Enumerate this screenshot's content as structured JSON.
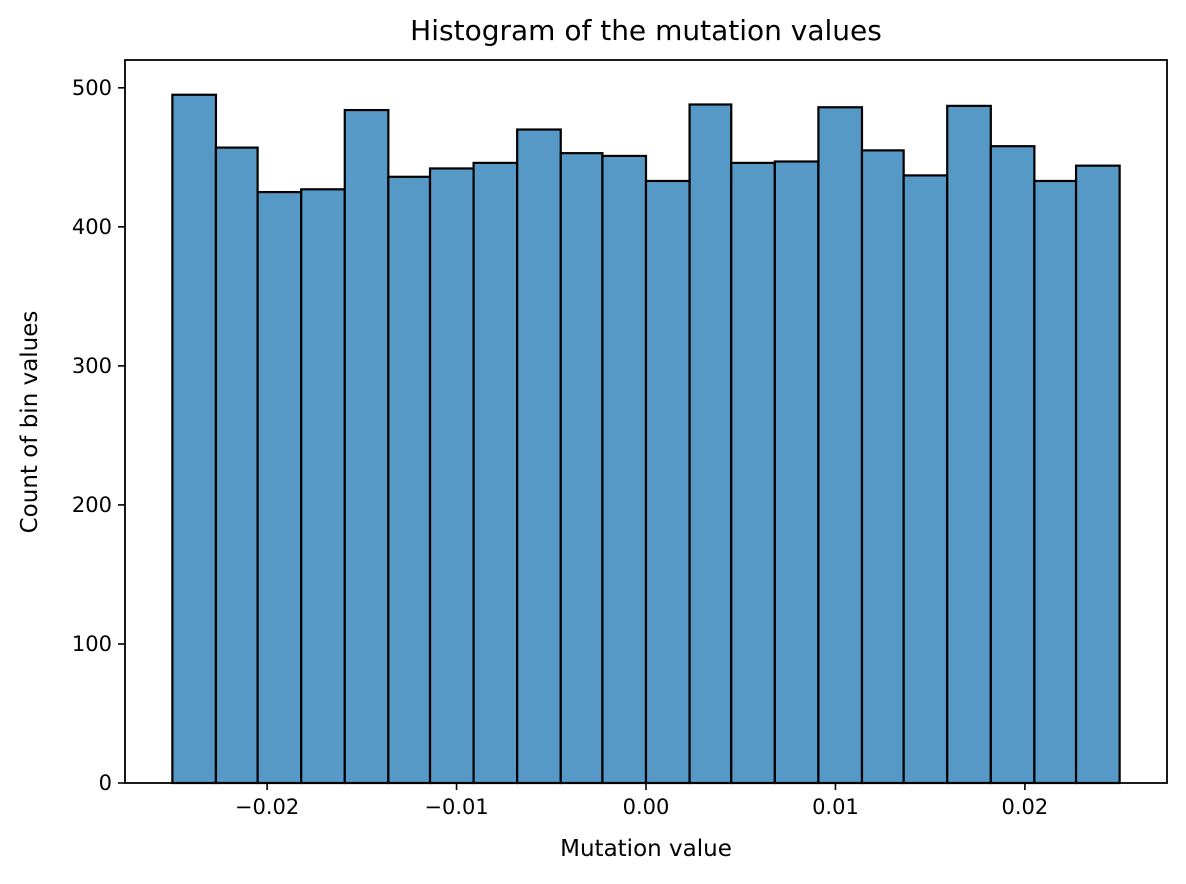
{
  "chart_data": {
    "type": "bar",
    "title": "Histogram of the mutation values",
    "xlabel": "Mutation value",
    "ylabel": "Count of bin values",
    "bin_edges": [
      -0.025,
      -0.0227,
      -0.0205,
      -0.0182,
      -0.0159,
      -0.0136,
      -0.0114,
      -0.0091,
      -0.0068,
      -0.0045,
      -0.0023,
      0.0,
      0.0023,
      0.0045,
      0.0068,
      0.0091,
      0.0114,
      0.0136,
      0.0159,
      0.0182,
      0.0205,
      0.0227,
      0.025
    ],
    "values": [
      495,
      457,
      425,
      427,
      484,
      436,
      442,
      446,
      470,
      453,
      451,
      433,
      488,
      446,
      447,
      486,
      455,
      437,
      487,
      458,
      433,
      444
    ],
    "xlim": [
      -0.0275,
      0.0275
    ],
    "ylim": [
      0,
      520
    ],
    "x_ticks": [
      -0.02,
      -0.01,
      0.0,
      0.01,
      0.02
    ],
    "x_tick_labels": [
      "−0.02",
      "−0.01",
      "0.00",
      "0.01",
      "0.02"
    ],
    "y_ticks": [
      0,
      100,
      200,
      300,
      400,
      500
    ],
    "y_tick_labels": [
      "0",
      "100",
      "200",
      "300",
      "400",
      "500"
    ],
    "grid": false,
    "legend": "none",
    "colors": {
      "bar_fill": "#5799c6",
      "bar_edge": "#000000",
      "axis": "#000000"
    }
  }
}
